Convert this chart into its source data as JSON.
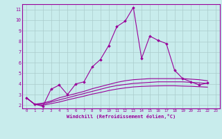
{
  "title": "",
  "xlabel": "Windchill (Refroidissement éolien,°C)",
  "bg_color": "#c8ecec",
  "grid_color": "#aacccc",
  "line_color": "#990099",
  "xlim": [
    -0.5,
    23.5
  ],
  "ylim": [
    1.7,
    11.5
  ],
  "xticks": [
    0,
    1,
    2,
    3,
    4,
    5,
    6,
    7,
    8,
    9,
    10,
    11,
    12,
    13,
    14,
    15,
    16,
    17,
    18,
    19,
    20,
    21,
    22,
    23
  ],
  "yticks": [
    2,
    3,
    4,
    5,
    6,
    7,
    8,
    9,
    10,
    11
  ],
  "main_x": [
    0,
    1,
    2,
    3,
    4,
    5,
    6,
    7,
    8,
    9,
    10,
    11,
    12,
    13,
    14,
    15,
    16,
    17,
    18,
    19,
    20,
    21,
    22
  ],
  "main_y": [
    2.7,
    2.1,
    1.9,
    3.5,
    3.9,
    3.0,
    4.0,
    4.2,
    5.6,
    6.3,
    7.6,
    9.4,
    9.9,
    11.2,
    6.4,
    8.5,
    8.1,
    7.8,
    5.3,
    4.5,
    4.2,
    3.9,
    4.1
  ],
  "smooth1_x": [
    0,
    1,
    2,
    3,
    4,
    5,
    6,
    7,
    8,
    9,
    10,
    11,
    12,
    13,
    14,
    15,
    16,
    17,
    18,
    19,
    20,
    21,
    22
  ],
  "smooth1_y": [
    2.7,
    2.1,
    2.2,
    2.4,
    2.7,
    2.9,
    3.1,
    3.3,
    3.55,
    3.75,
    3.95,
    4.15,
    4.3,
    4.4,
    4.45,
    4.5,
    4.5,
    4.5,
    4.5,
    4.5,
    4.45,
    4.4,
    4.3
  ],
  "smooth2_x": [
    0,
    1,
    2,
    3,
    4,
    5,
    6,
    7,
    8,
    9,
    10,
    11,
    12,
    13,
    14,
    15,
    16,
    17,
    18,
    19,
    20,
    21,
    22
  ],
  "smooth2_y": [
    2.7,
    2.1,
    2.1,
    2.3,
    2.5,
    2.7,
    2.9,
    3.1,
    3.3,
    3.5,
    3.7,
    3.85,
    3.95,
    4.05,
    4.1,
    4.15,
    4.2,
    4.2,
    4.2,
    4.2,
    4.15,
    4.1,
    4.05
  ],
  "smooth3_x": [
    0,
    1,
    2,
    3,
    4,
    5,
    6,
    7,
    8,
    9,
    10,
    11,
    12,
    13,
    14,
    15,
    16,
    17,
    18,
    19,
    20,
    21,
    22
  ],
  "smooth3_y": [
    2.7,
    2.1,
    2.0,
    2.15,
    2.3,
    2.5,
    2.68,
    2.85,
    3.05,
    3.2,
    3.38,
    3.52,
    3.63,
    3.72,
    3.77,
    3.8,
    3.82,
    3.83,
    3.83,
    3.8,
    3.78,
    3.74,
    3.7
  ]
}
